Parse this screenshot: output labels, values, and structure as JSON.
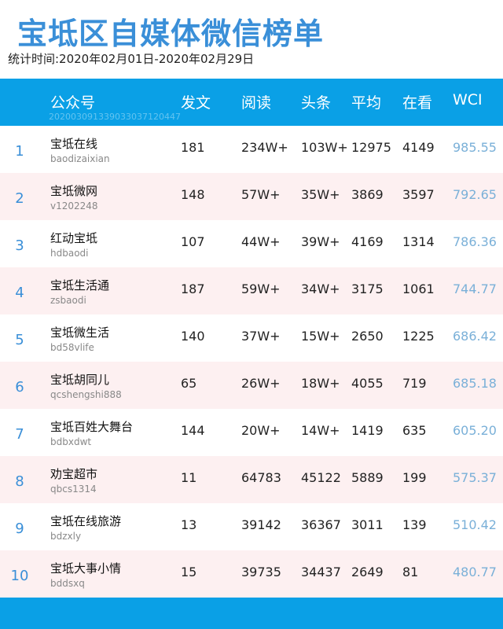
{
  "header": {
    "title": "宝坻区自媒体微信榜单",
    "subtitle": "统计时间:2020年02月01日-2020年02月29日"
  },
  "table": {
    "columns": [
      "公众号",
      "发文",
      "阅读",
      "头条",
      "平均",
      "在看",
      "WCI"
    ],
    "watermark": "202003091339033037120447",
    "rows": [
      [
        "1",
        "宝坻在线",
        "baodizaixian",
        "181",
        "234W+",
        "103W+",
        "12975",
        "4149",
        "985.55"
      ],
      [
        "2",
        "宝坻微网",
        "v1202248",
        "148",
        "57W+",
        "35W+",
        "3869",
        "3597",
        "792.65"
      ],
      [
        "3",
        "红动宝坻",
        "hdbaodi",
        "107",
        "44W+",
        "39W+",
        "4169",
        "1314",
        "786.36"
      ],
      [
        "4",
        "宝坻生活通",
        "zsbaodi",
        "187",
        "59W+",
        "34W+",
        "3175",
        "1061",
        "744.77"
      ],
      [
        "5",
        "宝坻微生活",
        "bd58vlife",
        "140",
        "37W+",
        "15W+",
        "2650",
        "1225",
        "686.42"
      ],
      [
        "6",
        "宝坻胡同儿",
        "qcshengshi888",
        "65",
        "26W+",
        "18W+",
        "4055",
        "719",
        "685.18"
      ],
      [
        "7",
        "宝坻百姓大舞台",
        "bdbxdwt",
        "144",
        "20W+",
        "14W+",
        "1419",
        "635",
        "605.20"
      ],
      [
        "8",
        "劝宝超市",
        "qbcs1314",
        "11",
        "64783",
        "45122",
        "5889",
        "199",
        "575.37"
      ],
      [
        "9",
        "宝坻在线旅游",
        "bdzxly",
        "13",
        "39142",
        "36367",
        "3011",
        "139",
        "510.42"
      ],
      [
        "10",
        "宝坻大事小情",
        "bddsxq",
        "15",
        "39735",
        "34437",
        "2649",
        "81",
        "480.77"
      ]
    ]
  }
}
